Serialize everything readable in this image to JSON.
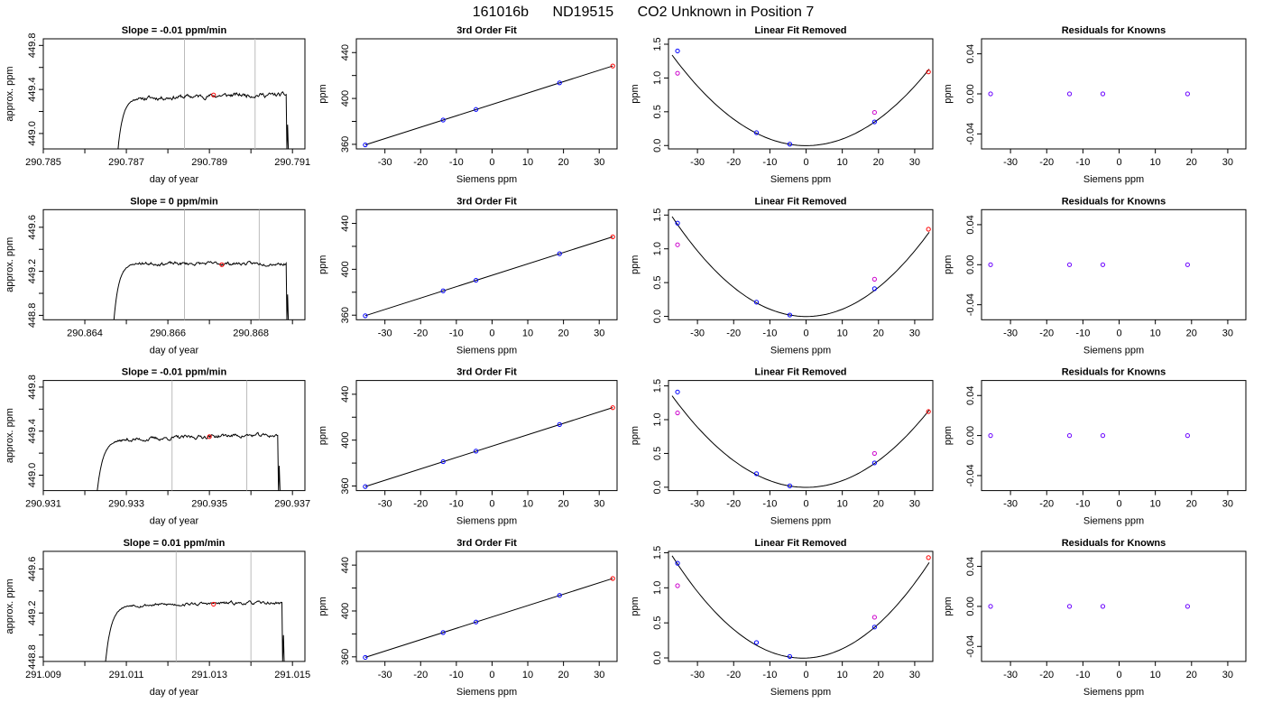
{
  "figure": {
    "title_parts": [
      "161016b",
      "ND19515",
      "CO2 Unknown in Position  7"
    ]
  },
  "colors": {
    "axis": "#000000",
    "trace": "#000000",
    "window_line": "#bbbbbb",
    "std_point": "#0000ff",
    "unknown_point": "#ff0000",
    "linear_point": "#cc00cc",
    "residual_point": "#6a00ff"
  },
  "rows": [
    {
      "time_plot": {
        "title": "Slope =  -0.01  ppm/min",
        "xlabel": "day of year",
        "ylabel": "approx. ppm",
        "xlim": [
          290.785,
          290.7913
        ],
        "ylim": [
          448.86,
          449.86
        ],
        "xticks": [
          290.785,
          290.787,
          290.789,
          290.791
        ],
        "xticks_minor": [
          290.786,
          290.788,
          290.79
        ],
        "yticks": [
          449.0,
          449.4,
          449.8
        ],
        "yticks_minor": [
          449.2,
          449.6
        ],
        "ytick_decimals": 1,
        "xtick_decimals": 3,
        "trace": {
          "start": 290.7868,
          "end": 290.7909,
          "rise_end": 290.7874,
          "base": 448.86,
          "plateau": 449.32,
          "plateau_end": 449.35,
          "noise": 0.018,
          "seed": 11
        },
        "window_lines": [
          290.7884,
          290.7901
        ],
        "marker": {
          "x": 290.7891,
          "y": 449.35
        }
      },
      "fit": {
        "title": "3rd Order Fit",
        "xlabel": "Siemens ppm",
        "ylabel": "ppm",
        "xlim": [
          -38,
          35
        ],
        "ylim": [
          356,
          452
        ],
        "xticks": [
          -30,
          -20,
          -10,
          0,
          10,
          20,
          30
        ],
        "yticks": [
          360,
          400,
          440
        ],
        "yticks_minor": [
          380,
          420
        ],
        "standards": [
          {
            "x": -35.5,
            "y": 359.5
          },
          {
            "x": -13.7,
            "y": 381.2
          },
          {
            "x": -4.5,
            "y": 390.4
          },
          {
            "x": 18.9,
            "y": 413.6
          }
        ],
        "unknown": {
          "x": 33.8,
          "y": 428.3
        },
        "line": {
          "x0": -35.5,
          "x1": 33.8
        }
      },
      "linear_removed": {
        "title": "Linear Fit Removed",
        "xlabel": "Siemens ppm",
        "ylabel": "ppm",
        "xlim": [
          -38,
          35
        ],
        "ylim": [
          -0.05,
          1.58
        ],
        "xticks": [
          -30,
          -20,
          -10,
          0,
          10,
          20,
          30
        ],
        "yticks": [
          0.0,
          0.5,
          1.0,
          1.5
        ],
        "ytick_decimals": 1,
        "curve": {
          "a": 0.00098,
          "b": 0.0,
          "c": -0.002
        },
        "curve_range": [
          -37,
          34
        ],
        "standards": [
          {
            "x": -35.5,
            "y": 1.4
          },
          {
            "x": -13.7,
            "y": 0.19
          },
          {
            "x": -4.5,
            "y": 0.02
          },
          {
            "x": 18.9,
            "y": 0.35
          }
        ],
        "linear": [
          {
            "x": -35.5,
            "y": 1.07
          },
          {
            "x": 18.9,
            "y": 0.49
          }
        ],
        "unknown": {
          "x": 33.8,
          "y": 1.09
        }
      },
      "residuals": {
        "title": "Residuals for Knowns",
        "xlabel": "Siemens ppm",
        "ylabel": "ppm",
        "xlim": [
          -38,
          35
        ],
        "ylim": [
          -0.055,
          0.055
        ],
        "xticks": [
          -30,
          -20,
          -10,
          0,
          10,
          20,
          30
        ],
        "yticks": [
          -0.04,
          0.0,
          0.04
        ],
        "ytick_decimals": 2,
        "points": [
          {
            "x": -35.5,
            "y": 0
          },
          {
            "x": -13.7,
            "y": 0
          },
          {
            "x": -4.5,
            "y": 0
          },
          {
            "x": 18.9,
            "y": 0
          }
        ]
      }
    },
    {
      "time_plot": {
        "title": "Slope =  0  ppm/min",
        "xlabel": "day of year",
        "ylabel": "approx. ppm",
        "xlim": [
          290.863,
          290.8693
        ],
        "ylim": [
          448.76,
          449.76
        ],
        "xticks": [
          290.864,
          290.866,
          290.868
        ],
        "xticks_minor": [
          290.865,
          290.867,
          290.869
        ],
        "yticks": [
          448.8,
          449.2,
          449.6
        ],
        "yticks_minor": [
          449.0,
          449.4
        ],
        "ytick_decimals": 1,
        "xtick_decimals": 3,
        "trace": {
          "start": 290.8647,
          "end": 290.8689,
          "rise_end": 290.8653,
          "base": 448.76,
          "plateau": 449.27,
          "plateau_end": 449.27,
          "noise": 0.014,
          "seed": 23
        },
        "window_lines": [
          290.8664,
          290.8682
        ],
        "marker": {
          "x": 290.8673,
          "y": 449.26
        }
      },
      "fit": {
        "title": "3rd Order Fit",
        "xlabel": "Siemens ppm",
        "ylabel": "ppm",
        "xlim": [
          -38,
          35
        ],
        "ylim": [
          356,
          452
        ],
        "xticks": [
          -30,
          -20,
          -10,
          0,
          10,
          20,
          30
        ],
        "yticks": [
          360,
          400,
          440
        ],
        "yticks_minor": [
          380,
          420
        ],
        "standards": [
          {
            "x": -35.5,
            "y": 359.5
          },
          {
            "x": -13.7,
            "y": 381.2
          },
          {
            "x": -4.5,
            "y": 390.4
          },
          {
            "x": 18.9,
            "y": 413.6
          }
        ],
        "unknown": {
          "x": 33.8,
          "y": 428.3
        },
        "line": {
          "x0": -35.5,
          "x1": 33.8
        }
      },
      "linear_removed": {
        "title": "Linear Fit Removed",
        "xlabel": "Siemens ppm",
        "ylabel": "ppm",
        "xlim": [
          -38,
          35
        ],
        "ylim": [
          -0.05,
          1.58
        ],
        "xticks": [
          -30,
          -20,
          -10,
          0,
          10,
          20,
          30
        ],
        "yticks": [
          0.0,
          0.5,
          1.0,
          1.5
        ],
        "ytick_decimals": 1,
        "curve": {
          "a": 0.00108,
          "b": 0.0,
          "c": -0.002
        },
        "curve_range": [
          -37,
          34
        ],
        "standards": [
          {
            "x": -35.5,
            "y": 1.38
          },
          {
            "x": -13.7,
            "y": 0.21
          },
          {
            "x": -4.5,
            "y": 0.02
          },
          {
            "x": 18.9,
            "y": 0.41
          }
        ],
        "linear": [
          {
            "x": -35.5,
            "y": 1.06
          },
          {
            "x": 18.9,
            "y": 0.55
          }
        ],
        "unknown": {
          "x": 33.8,
          "y": 1.29
        }
      },
      "residuals": {
        "title": "Residuals for Knowns",
        "xlabel": "Siemens ppm",
        "ylabel": "ppm",
        "xlim": [
          -38,
          35
        ],
        "ylim": [
          -0.055,
          0.055
        ],
        "xticks": [
          -30,
          -20,
          -10,
          0,
          10,
          20,
          30
        ],
        "yticks": [
          -0.04,
          0.0,
          0.04
        ],
        "ytick_decimals": 2,
        "points": [
          {
            "x": -35.5,
            "y": 0
          },
          {
            "x": -13.7,
            "y": 0
          },
          {
            "x": -4.5,
            "y": 0
          },
          {
            "x": 18.9,
            "y": 0
          }
        ]
      }
    },
    {
      "time_plot": {
        "title": "Slope =  -0.01  ppm/min",
        "xlabel": "day of year",
        "ylabel": "approx. ppm",
        "xlim": [
          290.931,
          290.9373
        ],
        "ylim": [
          448.86,
          449.86
        ],
        "xticks": [
          290.931,
          290.933,
          290.935,
          290.937
        ],
        "xticks_minor": [
          290.932,
          290.934,
          290.936
        ],
        "yticks": [
          449.0,
          449.4,
          449.8
        ],
        "yticks_minor": [
          449.2,
          449.6
        ],
        "ytick_decimals": 1,
        "xtick_decimals": 3,
        "trace": {
          "start": 290.9323,
          "end": 290.9367,
          "rise_end": 290.933,
          "base": 448.86,
          "plateau": 449.32,
          "plateau_end": 449.36,
          "noise": 0.016,
          "seed": 37
        },
        "window_lines": [
          290.9341,
          290.9359
        ],
        "marker": {
          "x": 290.935,
          "y": 449.35
        }
      },
      "fit": {
        "title": "3rd Order Fit",
        "xlabel": "Siemens ppm",
        "ylabel": "ppm",
        "xlim": [
          -38,
          35
        ],
        "ylim": [
          356,
          452
        ],
        "xticks": [
          -30,
          -20,
          -10,
          0,
          10,
          20,
          30
        ],
        "yticks": [
          360,
          400,
          440
        ],
        "yticks_minor": [
          380,
          420
        ],
        "standards": [
          {
            "x": -35.5,
            "y": 359.5
          },
          {
            "x": -13.7,
            "y": 381.2
          },
          {
            "x": -4.5,
            "y": 390.4
          },
          {
            "x": 18.9,
            "y": 413.6
          }
        ],
        "unknown": {
          "x": 33.8,
          "y": 428.3
        },
        "line": {
          "x0": -35.5,
          "x1": 33.8
        }
      },
      "linear_removed": {
        "title": "Linear Fit Removed",
        "xlabel": "Siemens ppm",
        "ylabel": "ppm",
        "xlim": [
          -38,
          35
        ],
        "ylim": [
          -0.05,
          1.58
        ],
        "xticks": [
          -30,
          -20,
          -10,
          0,
          10,
          20,
          30
        ],
        "yticks": [
          0.0,
          0.5,
          1.0,
          1.5
        ],
        "ytick_decimals": 1,
        "curve": {
          "a": 0.00099,
          "b": 0.0,
          "c": -0.002
        },
        "curve_range": [
          -37,
          34
        ],
        "standards": [
          {
            "x": -35.5,
            "y": 1.41
          },
          {
            "x": -13.7,
            "y": 0.2
          },
          {
            "x": -4.5,
            "y": 0.02
          },
          {
            "x": 18.9,
            "y": 0.36
          }
        ],
        "linear": [
          {
            "x": -35.5,
            "y": 1.1
          },
          {
            "x": 18.9,
            "y": 0.5
          }
        ],
        "unknown": {
          "x": 33.8,
          "y": 1.12
        }
      },
      "residuals": {
        "title": "Residuals for Knowns",
        "xlabel": "Siemens ppm",
        "ylabel": "ppm",
        "xlim": [
          -38,
          35
        ],
        "ylim": [
          -0.055,
          0.055
        ],
        "xticks": [
          -30,
          -20,
          -10,
          0,
          10,
          20,
          30
        ],
        "yticks": [
          -0.04,
          0.0,
          0.04
        ],
        "ytick_decimals": 2,
        "points": [
          {
            "x": -35.5,
            "y": 0
          },
          {
            "x": -13.7,
            "y": 0
          },
          {
            "x": -4.5,
            "y": 0
          },
          {
            "x": 18.9,
            "y": 0
          }
        ]
      }
    },
    {
      "time_plot": {
        "title": "Slope =  0.01  ppm/min",
        "xlabel": "day of year",
        "ylabel": "approx. ppm",
        "xlim": [
          291.009,
          291.0153
        ],
        "ylim": [
          448.76,
          449.76
        ],
        "xticks": [
          291.009,
          291.011,
          291.013,
          291.015
        ],
        "xticks_minor": [
          291.01,
          291.012,
          291.014
        ],
        "yticks": [
          448.8,
          449.2,
          449.6
        ],
        "yticks_minor": [
          449.0,
          449.4
        ],
        "ytick_decimals": 1,
        "xtick_decimals": 3,
        "trace": {
          "start": 291.0105,
          "end": 291.0148,
          "rise_end": 291.0112,
          "base": 448.76,
          "plateau": 449.27,
          "plateau_end": 449.29,
          "noise": 0.013,
          "seed": 53
        },
        "window_lines": [
          291.0122,
          291.014
        ],
        "marker": {
          "x": 291.0131,
          "y": 449.28
        }
      },
      "fit": {
        "title": "3rd Order Fit",
        "xlabel": "Siemens ppm",
        "ylabel": "ppm",
        "xlim": [
          -38,
          35
        ],
        "ylim": [
          356,
          452
        ],
        "xticks": [
          -30,
          -20,
          -10,
          0,
          10,
          20,
          30
        ],
        "yticks": [
          360,
          400,
          440
        ],
        "yticks_minor": [
          380,
          420
        ],
        "standards": [
          {
            "x": -35.5,
            "y": 359.5
          },
          {
            "x": -13.7,
            "y": 381.2
          },
          {
            "x": -4.5,
            "y": 390.4
          },
          {
            "x": 18.9,
            "y": 413.6
          }
        ],
        "unknown": {
          "x": 33.8,
          "y": 428.3
        },
        "line": {
          "x0": -35.5,
          "x1": 33.8
        }
      },
      "linear_removed": {
        "title": "Linear Fit Removed",
        "xlabel": "Siemens ppm",
        "ylabel": "ppm",
        "xlim": [
          -38,
          35
        ],
        "ylim": [
          -0.05,
          1.52
        ],
        "xticks": [
          -30,
          -20,
          -10,
          0,
          10,
          20,
          30
        ],
        "yticks": [
          0.0,
          0.5,
          1.0,
          1.5
        ],
        "ytick_decimals": 1,
        "curve": {
          "a": 0.00112,
          "b": 0.002,
          "c": -0.002
        },
        "curve_range": [
          -37,
          34
        ],
        "standards": [
          {
            "x": -35.5,
            "y": 1.35
          },
          {
            "x": -13.7,
            "y": 0.22
          },
          {
            "x": -4.5,
            "y": 0.02
          },
          {
            "x": 18.9,
            "y": 0.44
          }
        ],
        "linear": [
          {
            "x": -35.5,
            "y": 1.03
          },
          {
            "x": 18.9,
            "y": 0.58
          }
        ],
        "unknown": {
          "x": 33.8,
          "y": 1.43
        }
      },
      "residuals": {
        "title": "Residuals for Knowns",
        "xlabel": "Siemens ppm",
        "ylabel": "ppm",
        "xlim": [
          -38,
          35
        ],
        "ylim": [
          -0.055,
          0.055
        ],
        "xticks": [
          -30,
          -20,
          -10,
          0,
          10,
          20,
          30
        ],
        "yticks": [
          -0.04,
          0.0,
          0.04
        ],
        "ytick_decimals": 2,
        "points": [
          {
            "x": -35.5,
            "y": 0
          },
          {
            "x": -13.7,
            "y": 0
          },
          {
            "x": -4.5,
            "y": 0
          },
          {
            "x": 18.9,
            "y": 0
          }
        ]
      }
    }
  ],
  "chart_data": [
    {
      "type": "line",
      "title": "Slope =  -0.01  ppm/min",
      "xlabel": "day of year",
      "ylabel": "approx. ppm",
      "xlim": [
        290.785,
        290.7913
      ],
      "ylim": [
        448.86,
        449.86
      ],
      "grid": false
    },
    {
      "type": "scatter",
      "title": "3rd Order Fit",
      "xlabel": "Siemens ppm",
      "ylabel": "ppm",
      "x": [
        -35.5,
        -13.7,
        -4.5,
        18.9,
        33.8
      ],
      "y": [
        359.5,
        381.2,
        390.4,
        413.6,
        428.3
      ],
      "grid": false
    },
    {
      "type": "scatter",
      "title": "Linear Fit Removed",
      "xlabel": "Siemens ppm",
      "ylabel": "ppm",
      "x": [
        -35.5,
        -13.7,
        -4.5,
        18.9,
        33.8
      ],
      "y": [
        1.4,
        0.19,
        0.02,
        0.35,
        1.09
      ],
      "grid": false
    },
    {
      "type": "scatter",
      "title": "Residuals for Knowns",
      "xlabel": "Siemens ppm",
      "ylabel": "ppm",
      "x": [
        -35.5,
        -13.7,
        -4.5,
        18.9
      ],
      "y": [
        0,
        0,
        0,
        0
      ],
      "grid": false
    }
  ]
}
